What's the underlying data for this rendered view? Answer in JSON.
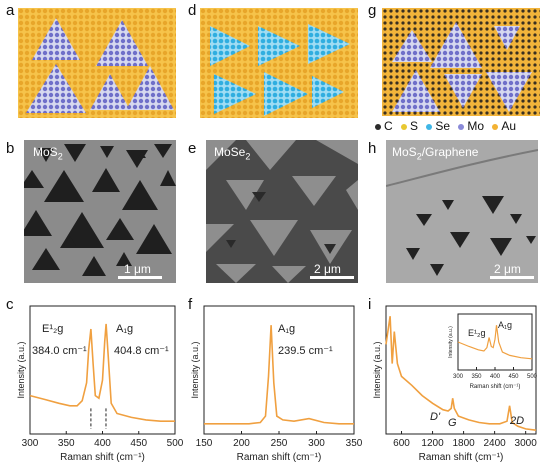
{
  "panel_labels": {
    "a": "a",
    "b": "b",
    "c": "c",
    "d": "d",
    "e": "e",
    "f": "f",
    "g": "g",
    "h": "h",
    "i": "i"
  },
  "images": {
    "b": {
      "label": "MoS$_2$",
      "label_text": "MoS",
      "label_sub": "2",
      "scalebar": "1 μm"
    },
    "e": {
      "label_text": "MoSe",
      "label_sub": "2",
      "scalebar": "2 μm"
    },
    "h": {
      "label_text": "MoS",
      "label_sub": "2",
      "label_suffix": "/Graphene",
      "scalebar": "2 μm"
    }
  },
  "legend": [
    {
      "symbol": "C",
      "color": "#2b2b2b"
    },
    {
      "symbol": "S",
      "color": "#e8c832"
    },
    {
      "symbol": "Se",
      "color": "#3fb6e6"
    },
    {
      "symbol": "Mo",
      "color": "#8a8ad8"
    },
    {
      "symbol": "Au",
      "color": "#f3b233"
    }
  ],
  "chart_data": [
    {
      "type": "line",
      "panel": "c",
      "xlabel": "Raman shift (cm⁻¹)",
      "ylabel": "Intensity (a.u.)",
      "xlim": [
        300,
        500
      ],
      "xticks": [
        300,
        350,
        400,
        450,
        500
      ],
      "color": "#f0a040",
      "peaks": [
        {
          "name": "E¹₂g",
          "position": 384.0,
          "label": "384.0 cm⁻¹"
        },
        {
          "name": "A₁g",
          "position": 404.8,
          "label": "404.8 cm⁻¹"
        }
      ],
      "x": [
        300,
        320,
        340,
        355,
        365,
        372,
        378,
        381,
        384,
        387,
        390,
        395,
        400,
        403,
        405,
        408,
        412,
        420,
        440,
        460,
        480,
        500
      ],
      "y": [
        0.3,
        0.27,
        0.24,
        0.22,
        0.22,
        0.26,
        0.4,
        0.66,
        0.82,
        0.55,
        0.3,
        0.28,
        0.42,
        0.72,
        0.86,
        0.6,
        0.24,
        0.16,
        0.13,
        0.11,
        0.1,
        0.1
      ]
    },
    {
      "type": "line",
      "panel": "f",
      "xlabel": "Raman shift (cm⁻¹)",
      "ylabel": "Intensity (a.u.)",
      "xlim": [
        150,
        350
      ],
      "xticks": [
        150,
        200,
        250,
        300,
        350
      ],
      "color": "#f0a040",
      "peaks": [
        {
          "name": "A₁g",
          "position": 239.5,
          "label": "239.5 cm⁻¹"
        }
      ],
      "x": [
        150,
        170,
        190,
        210,
        225,
        232,
        236,
        239.5,
        243,
        247,
        255,
        270,
        290,
        310,
        330,
        350
      ],
      "y": [
        0.08,
        0.08,
        0.08,
        0.08,
        0.09,
        0.14,
        0.45,
        0.85,
        0.4,
        0.14,
        0.11,
        0.1,
        0.12,
        0.09,
        0.08,
        0.08
      ]
    },
    {
      "type": "line",
      "panel": "i",
      "xlabel": "Raman shift (cm⁻¹)",
      "ylabel": "Intensity (a.u.)",
      "xlim": [
        300,
        3200
      ],
      "xticks": [
        600,
        1200,
        1800,
        2400,
        3000
      ],
      "color": "#f0a040",
      "annotations": [
        "D'",
        "G",
        "2D"
      ],
      "x": [
        300,
        380,
        420,
        460,
        520,
        600,
        800,
        1000,
        1200,
        1400,
        1500,
        1560,
        1590,
        1620,
        1700,
        1900,
        2100,
        2300,
        2500,
        2640,
        2690,
        2740,
        2850,
        3000,
        3200
      ],
      "y": [
        0.7,
        0.92,
        0.55,
        0.8,
        0.55,
        0.45,
        0.38,
        0.3,
        0.24,
        0.19,
        0.18,
        0.2,
        0.28,
        0.2,
        0.14,
        0.11,
        0.09,
        0.08,
        0.08,
        0.1,
        0.22,
        0.09,
        0.06,
        0.04,
        0.03
      ],
      "inset": {
        "xlabel": "Raman shift (cm⁻¹)",
        "ylabel": "Intensity (a.u.)",
        "xlim": [
          300,
          500
        ],
        "xticks": [
          300,
          350,
          400,
          450,
          500
        ],
        "peaks": [
          {
            "name": "E¹₂g"
          },
          {
            "name": "A₁g"
          }
        ],
        "x": [
          300,
          330,
          355,
          370,
          378,
          384,
          390,
          395,
          400,
          404,
          410,
          420,
          440,
          470,
          500
        ],
        "y": [
          0.5,
          0.42,
          0.36,
          0.34,
          0.4,
          0.58,
          0.42,
          0.4,
          0.55,
          0.8,
          0.5,
          0.32,
          0.26,
          0.22,
          0.2
        ]
      }
    }
  ]
}
